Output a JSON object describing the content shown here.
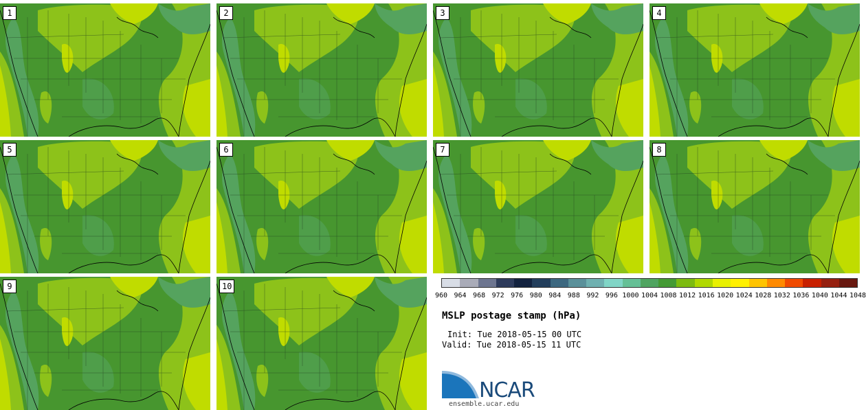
{
  "panels": [
    {
      "label": "1"
    },
    {
      "label": "2"
    },
    {
      "label": "3"
    },
    {
      "label": "4"
    },
    {
      "label": "5"
    },
    {
      "label": "6"
    },
    {
      "label": "7"
    },
    {
      "label": "8"
    },
    {
      "label": "9"
    },
    {
      "label": "10"
    }
  ],
  "colorbar": {
    "ticks": [
      "960",
      "964",
      "968",
      "972",
      "976",
      "980",
      "984",
      "988",
      "992",
      "996",
      "1000",
      "1004",
      "1008",
      "1012",
      "1016",
      "1020",
      "1024",
      "1028",
      "1032",
      "1036",
      "1040",
      "1044",
      "1048"
    ],
    "colors": [
      "#d8dde6",
      "#a9abb8",
      "#6d7590",
      "#2e3b5c",
      "#13223f",
      "#233e5c",
      "#3d6880",
      "#5a909a",
      "#6fb0b0",
      "#80d5c6",
      "#65c096",
      "#4fa460",
      "#449a34",
      "#7dbb10",
      "#b0d800",
      "#e8f000",
      "#fff000",
      "#ffc400",
      "#ff8a00",
      "#f04a00",
      "#c82000",
      "#962010",
      "#681810"
    ]
  },
  "map_colors": {
    "low_1008": "#55a35e",
    "mid_1012": "#47962f",
    "high_1016": "#8dc21a",
    "higher_1020": "#c0dc00"
  },
  "title": "MSLP postage stamp (hPa)",
  "init": "Init: Tue 2018-05-15 00 UTC",
  "valid": "Valid: Tue 2018-05-15 11 UTC",
  "logo": {
    "text": "NCAR",
    "color": "#1a4a7a",
    "swoosh_color": "#1b75bb"
  },
  "site": "ensemble.ucar.edu"
}
